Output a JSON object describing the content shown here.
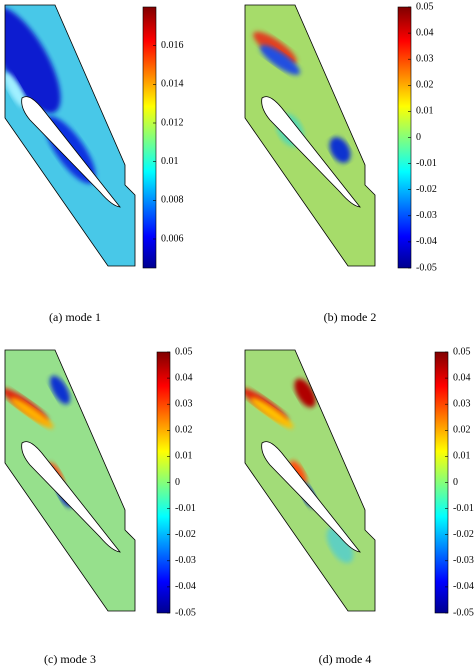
{
  "panels": [
    {
      "caption": "(a) mode 1",
      "colorbar": {
        "clim": [
          0.0045,
          0.018
        ],
        "ticks": [
          0.006,
          0.008,
          0.01,
          0.012,
          0.014,
          0.016
        ]
      }
    },
    {
      "caption": "(b) mode 2",
      "colorbar": {
        "clim": [
          -0.05,
          0.05
        ],
        "ticks": [
          -0.05,
          -0.04,
          -0.03,
          -0.02,
          -0.01,
          0,
          0.01,
          0.02,
          0.03,
          0.04,
          0.05
        ]
      }
    },
    {
      "caption": "(c) mode 3",
      "colorbar": {
        "clim": [
          -0.05,
          0.05
        ],
        "ticks": [
          -0.05,
          -0.04,
          -0.03,
          -0.02,
          -0.01,
          0,
          0.01,
          0.02,
          0.03,
          0.04,
          0.05
        ]
      }
    },
    {
      "caption": "(d) mode 4",
      "colorbar": {
        "clim": [
          -0.05,
          0.05
        ],
        "ticks": [
          -0.05,
          -0.04,
          -0.03,
          -0.02,
          -0.01,
          0,
          0.01,
          0.02,
          0.03,
          0.04,
          0.05
        ]
      }
    }
  ]
}
